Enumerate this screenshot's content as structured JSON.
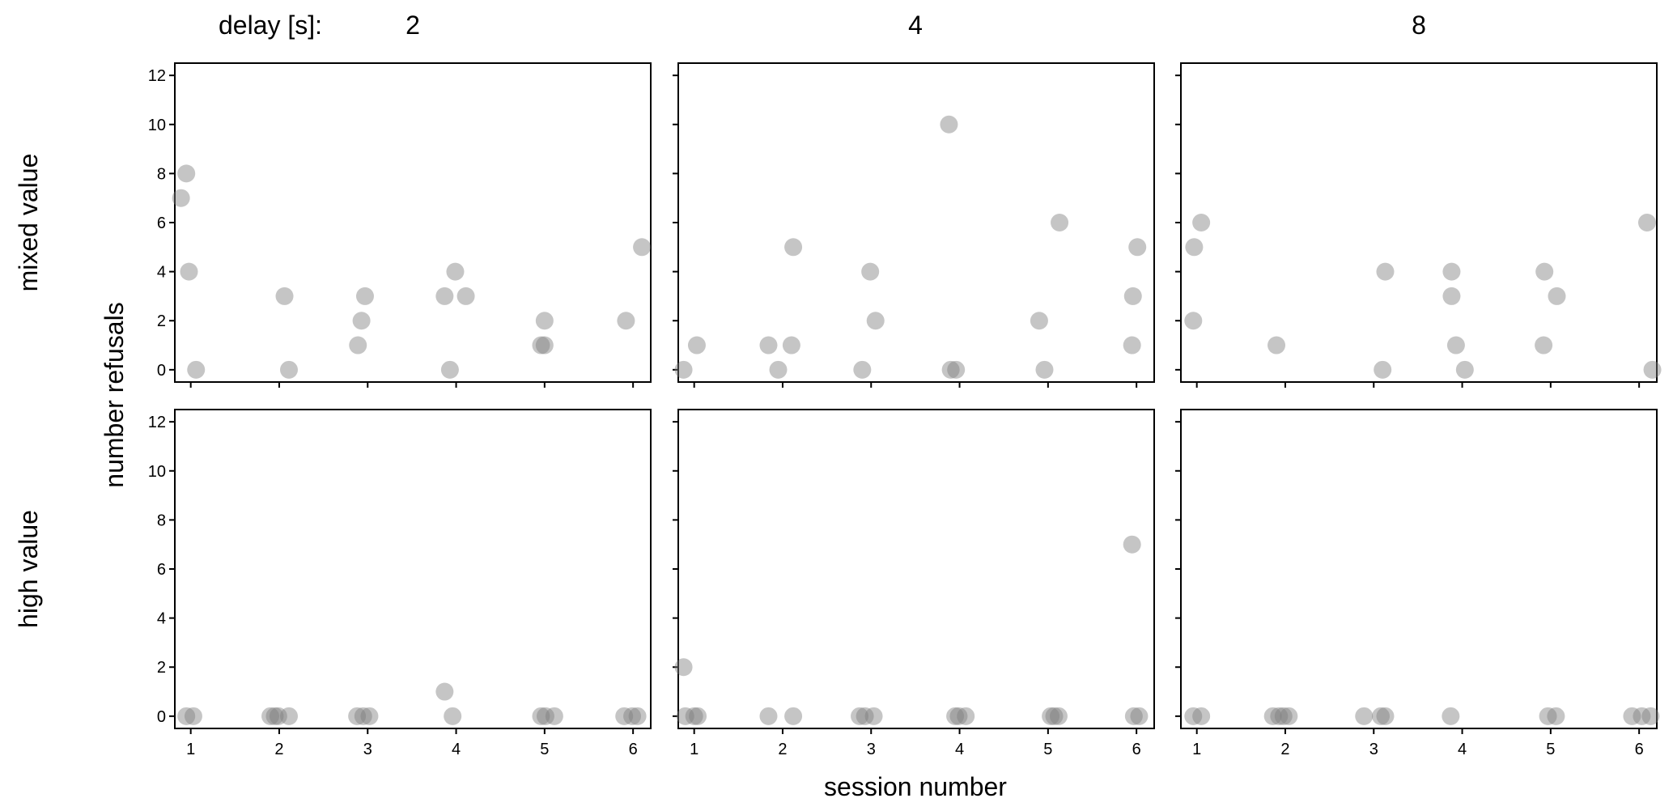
{
  "chart_data": {
    "type": "scatter",
    "delay_label": "delay [s]:",
    "xlabel": "session number",
    "ylabel": "number refusals",
    "x_ticks": [
      1,
      2,
      3,
      4,
      5,
      6
    ],
    "y_ticks": [
      0,
      2,
      4,
      6,
      8,
      10,
      12
    ],
    "xlim": [
      0.82,
      6.2
    ],
    "ylim": [
      -0.5,
      12.5
    ],
    "point_color": "#7f7f7f",
    "columns": [
      {
        "delay": "2"
      },
      {
        "delay": "4"
      },
      {
        "delay": "8"
      }
    ],
    "rows": [
      {
        "name": "mixed value"
      },
      {
        "name": "high value"
      }
    ],
    "panels": [
      {
        "row": 0,
        "col": 0,
        "points": [
          [
            0.89,
            7
          ],
          [
            0.95,
            8
          ],
          [
            0.98,
            4
          ],
          [
            1.06,
            0
          ],
          [
            2.06,
            3
          ],
          [
            2.11,
            0
          ],
          [
            2.89,
            1
          ],
          [
            2.93,
            2
          ],
          [
            2.97,
            3
          ],
          [
            3.87,
            3
          ],
          [
            3.93,
            0
          ],
          [
            3.99,
            4
          ],
          [
            4.11,
            3
          ],
          [
            4.96,
            1
          ],
          [
            5.0,
            1
          ],
          [
            5.0,
            2
          ],
          [
            5.92,
            2
          ],
          [
            6.1,
            5
          ]
        ]
      },
      {
        "row": 0,
        "col": 1,
        "points": [
          [
            0.88,
            0
          ],
          [
            1.03,
            1
          ],
          [
            1.84,
            1
          ],
          [
            1.95,
            0
          ],
          [
            2.1,
            1
          ],
          [
            2.12,
            5
          ],
          [
            2.9,
            0
          ],
          [
            2.99,
            4
          ],
          [
            3.05,
            2
          ],
          [
            3.88,
            10
          ],
          [
            3.9,
            0
          ],
          [
            3.96,
            0
          ],
          [
            4.9,
            2
          ],
          [
            4.96,
            0
          ],
          [
            5.13,
            6
          ],
          [
            5.95,
            1
          ],
          [
            5.96,
            3
          ],
          [
            6.01,
            5
          ]
        ]
      },
      {
        "row": 0,
        "col": 2,
        "points": [
          [
            0.96,
            2
          ],
          [
            0.97,
            5
          ],
          [
            1.05,
            6
          ],
          [
            1.9,
            1
          ],
          [
            3.1,
            0
          ],
          [
            3.13,
            4
          ],
          [
            3.88,
            3
          ],
          [
            3.88,
            4
          ],
          [
            3.93,
            1
          ],
          [
            4.03,
            0
          ],
          [
            4.92,
            1
          ],
          [
            4.93,
            4
          ],
          [
            5.07,
            3
          ],
          [
            6.09,
            6
          ],
          [
            6.15,
            0
          ]
        ]
      },
      {
        "row": 1,
        "col": 0,
        "points": [
          [
            0.95,
            0
          ],
          [
            1.03,
            0
          ],
          [
            1.9,
            0
          ],
          [
            1.95,
            0
          ],
          [
            1.99,
            0
          ],
          [
            2.11,
            0
          ],
          [
            2.88,
            0
          ],
          [
            2.95,
            0
          ],
          [
            3.02,
            0
          ],
          [
            3.87,
            1
          ],
          [
            3.96,
            0
          ],
          [
            4.96,
            0
          ],
          [
            5.01,
            0
          ],
          [
            5.11,
            0
          ],
          [
            5.9,
            0
          ],
          [
            5.99,
            0
          ],
          [
            6.05,
            0
          ]
        ]
      },
      {
        "row": 1,
        "col": 1,
        "points": [
          [
            0.88,
            2
          ],
          [
            0.9,
            0
          ],
          [
            1.0,
            0
          ],
          [
            1.04,
            0
          ],
          [
            1.84,
            0
          ],
          [
            2.12,
            0
          ],
          [
            2.87,
            0
          ],
          [
            2.93,
            0
          ],
          [
            3.03,
            0
          ],
          [
            3.95,
            0
          ],
          [
            3.99,
            0
          ],
          [
            4.07,
            0
          ],
          [
            5.03,
            0
          ],
          [
            5.07,
            0
          ],
          [
            5.12,
            0
          ],
          [
            5.95,
            7
          ],
          [
            5.97,
            0
          ],
          [
            6.03,
            0
          ]
        ]
      },
      {
        "row": 1,
        "col": 2,
        "points": [
          [
            0.96,
            0
          ],
          [
            1.05,
            0
          ],
          [
            1.86,
            0
          ],
          [
            1.93,
            0
          ],
          [
            1.98,
            0
          ],
          [
            2.04,
            0
          ],
          [
            2.89,
            0
          ],
          [
            3.08,
            0
          ],
          [
            3.13,
            0
          ],
          [
            3.87,
            0
          ],
          [
            4.97,
            0
          ],
          [
            5.06,
            0
          ],
          [
            5.92,
            0
          ],
          [
            6.03,
            0
          ],
          [
            6.13,
            0
          ]
        ]
      }
    ]
  }
}
